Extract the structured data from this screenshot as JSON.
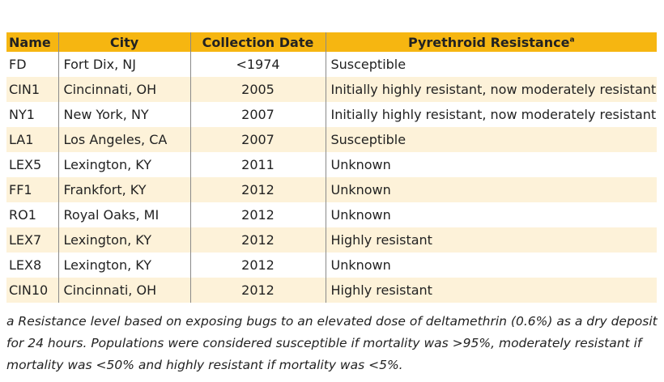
{
  "table": {
    "headers": [
      "Name",
      "City",
      "Collection Date",
      "Pyrethroid Resistance"
    ],
    "header_superscript": "a",
    "rows": [
      [
        "FD",
        "Fort Dix, NJ",
        "<1974",
        "Susceptible"
      ],
      [
        "CIN1",
        "Cincinnati, OH",
        "2005",
        "Initially highly resistant, now moderately resistant"
      ],
      [
        "NY1",
        "New York, NY",
        "2007",
        "Initially highly resistant, now moderately resistant"
      ],
      [
        "LA1",
        "Los Angeles, CA",
        "2007",
        "Susceptible"
      ],
      [
        "LEX5",
        "Lexington, KY",
        "2011",
        "Unknown"
      ],
      [
        "FF1",
        "Frankfort, KY",
        "2012",
        "Unknown"
      ],
      [
        "RO1",
        "Royal Oaks, MI",
        "2012",
        "Unknown"
      ],
      [
        "LEX7",
        "Lexington, KY",
        "2012",
        "Highly resistant"
      ],
      [
        "LEX8",
        "Lexington, KY",
        "2012",
        "Unknown"
      ],
      [
        "CIN10",
        "Cincinnati, OH",
        "2012",
        "Highly resistant"
      ]
    ],
    "footnote": "a Resistance level based on exposing bugs to an elevated dose of deltamethrin (0.6%) as a dry deposit for 24 hours. Populations were considered susceptible if mortality was >95%, moderately resistant if mortality was <50% and highly resistant if mortality was <5%."
  }
}
